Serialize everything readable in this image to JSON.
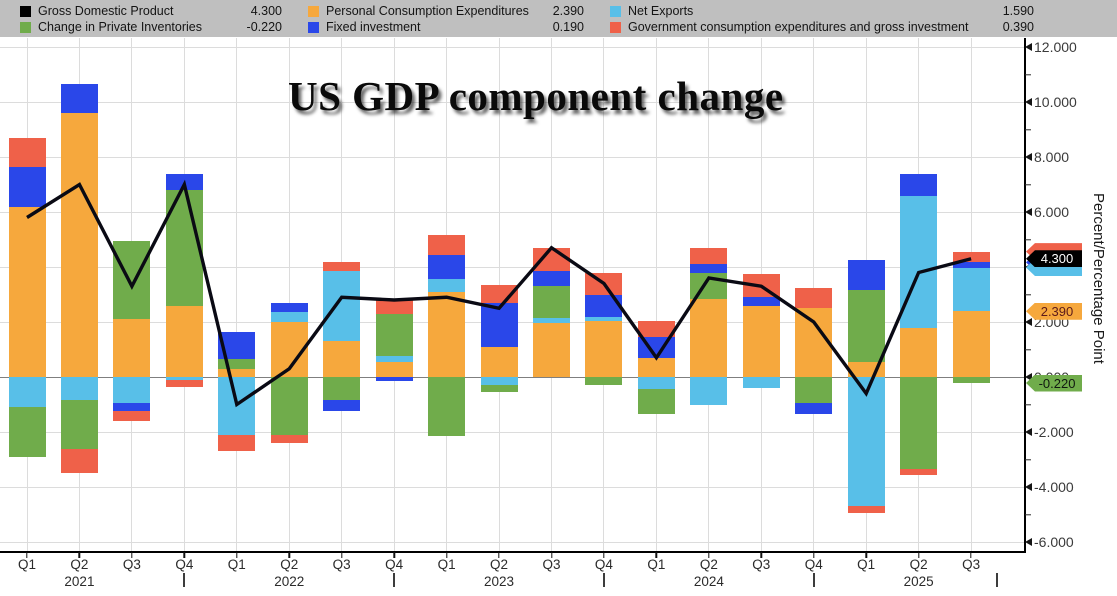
{
  "title": "US GDP component change",
  "legend": {
    "columns": [
      {
        "items": [
          {
            "series": "gdp",
            "label": "Gross Domestic Product",
            "value": "4.300"
          },
          {
            "series": "inventories",
            "label": "Change in Private Inventories",
            "value": "-0.220"
          }
        ]
      },
      {
        "items": [
          {
            "series": "pce",
            "label": "Personal Consumption Expenditures",
            "value": "2.390"
          },
          {
            "series": "fixed",
            "label": "Fixed investment",
            "value": "0.190"
          }
        ]
      },
      {
        "items": [
          {
            "series": "net_exports",
            "label": "Net Exports",
            "value": "1.590"
          },
          {
            "series": "gov",
            "label": "Government consumption expenditures and gross investment",
            "value": "0.390"
          }
        ]
      }
    ]
  },
  "y_axis": {
    "title": "Percent/Percentage Point",
    "major_tick_labels": [
      "12.000",
      "10.000",
      "8.000",
      "6.000",
      "4.000",
      "2.000",
      "0.000",
      "-2.000",
      "-4.000",
      "-6.000"
    ]
  },
  "x_axis": {
    "quarter_labels": [
      "Q1",
      "Q2",
      "Q3",
      "Q4",
      "Q1",
      "Q2",
      "Q3",
      "Q4",
      "Q1",
      "Q2",
      "Q3",
      "Q4",
      "Q1",
      "Q2",
      "Q3",
      "Q4",
      "Q1",
      "Q2",
      "Q3"
    ],
    "years": [
      {
        "label": "2021",
        "slot": 1
      },
      {
        "label": "2022",
        "slot": 5
      },
      {
        "label": "2023",
        "slot": 9
      },
      {
        "label": "2024",
        "slot": 13
      },
      {
        "label": "2025",
        "slot": 17
      }
    ],
    "separator_slots": [
      3,
      7,
      11,
      15
    ],
    "trailing_separator": true
  },
  "colors": {
    "series": {
      "gdp": "#000000",
      "pce": "#F6A83D",
      "net_exports": "#58BFE8",
      "inventories": "#70AC4B",
      "fixed": "#2A47E9",
      "gov": "#EF6149"
    },
    "gdp_line": "#0a0a14",
    "legend_bg": "#bfbfbf",
    "grid": "#dcdcdc",
    "zero_line": "#7f7f7f",
    "tag_text": {
      "gdp": "#ffffff",
      "pce": "#5c1a1a",
      "inventories": "#101810"
    }
  },
  "chart_data": {
    "type": "stacked-bar+line",
    "title": "US GDP component change",
    "ylabel": "Percent/Percentage Point",
    "ylim": [
      -6.4,
      12.35
    ],
    "y_major_step": 2,
    "y_minor_step": 1,
    "grid": true,
    "legend_position": "top",
    "categories": [
      "Q1 2021",
      "Q2 2021",
      "Q3 2021",
      "Q4 2021",
      "Q1 2022",
      "Q2 2022",
      "Q3 2022",
      "Q4 2022",
      "Q1 2023",
      "Q2 2023",
      "Q3 2023",
      "Q4 2023",
      "Q1 2024",
      "Q2 2024",
      "Q3 2024",
      "Q4 2024",
      "Q1 2025",
      "Q2 2025",
      "Q3 2025"
    ],
    "series": [
      {
        "name": "Personal Consumption Expenditures",
        "key": "pce",
        "values": [
          6.2,
          9.6,
          2.1,
          2.6,
          0.3,
          2.0,
          1.3,
          0.55,
          3.1,
          1.1,
          1.95,
          2.05,
          0.7,
          2.85,
          2.6,
          2.5,
          0.55,
          1.8,
          2.39
        ]
      },
      {
        "name": "Net Exports",
        "key": "net_exports",
        "values": [
          -1.1,
          -0.85,
          -0.95,
          -0.1,
          -2.1,
          0.35,
          2.55,
          0.2,
          0.45,
          -0.3,
          0.2,
          0.15,
          -0.45,
          -1.0,
          -0.4,
          0.0,
          -4.7,
          4.8,
          1.59
        ]
      },
      {
        "name": "Change in Private Inventories",
        "key": "inventories",
        "values": [
          -1.8,
          -1.75,
          2.85,
          4.2,
          0.35,
          -2.1,
          -0.85,
          1.55,
          -2.15,
          -0.25,
          1.15,
          -0.3,
          -0.9,
          0.95,
          0.0,
          -0.95,
          2.6,
          -3.35,
          -0.22
        ]
      },
      {
        "name": "Fixed investment",
        "key": "fixed",
        "values": [
          1.45,
          1.05,
          -0.3,
          0.6,
          1.0,
          0.35,
          -0.4,
          -0.15,
          0.9,
          1.6,
          0.55,
          0.8,
          0.75,
          0.3,
          0.3,
          -0.4,
          1.1,
          0.8,
          0.19
        ]
      },
      {
        "name": "Government consumption expenditures and gross investment",
        "key": "gov",
        "values": [
          1.05,
          -0.9,
          -0.35,
          -0.25,
          -0.6,
          -0.3,
          0.35,
          0.55,
          0.7,
          0.65,
          0.85,
          0.8,
          0.6,
          0.6,
          0.85,
          0.75,
          -0.25,
          -0.2,
          0.39
        ]
      }
    ],
    "line": {
      "name": "Gross Domestic Product",
      "key": "gdp",
      "values": [
        5.8,
        7.0,
        3.3,
        7.0,
        -1.0,
        0.3,
        2.9,
        2.8,
        2.9,
        2.5,
        4.7,
        3.4,
        0.7,
        3.6,
        3.3,
        2.0,
        -0.6,
        3.8,
        4.3
      ]
    },
    "axis_tags": [
      {
        "key": "gov",
        "at": 4.56,
        "label": ""
      },
      {
        "key": "fixed",
        "at": 4.17,
        "label": ""
      },
      {
        "key": "net_exports",
        "at": 3.98,
        "label": ""
      },
      {
        "key": "gdp",
        "at": 4.3,
        "label": "4.300"
      },
      {
        "key": "pce",
        "at": 2.39,
        "label": "2.390"
      },
      {
        "key": "inventories",
        "at": -0.22,
        "label": "-0.220"
      }
    ]
  }
}
